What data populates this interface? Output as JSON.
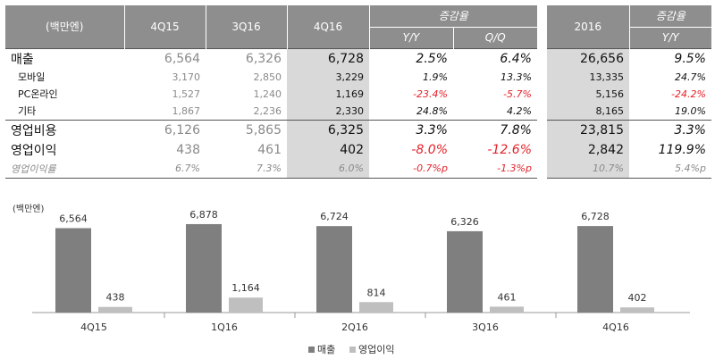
{
  "table": {
    "header_row_label": "(백만엔)",
    "columns": [
      "4Q15",
      "3Q16",
      "4Q16"
    ],
    "change_header": "증감율",
    "change_cols": [
      "Y/Y",
      "Q/Q"
    ],
    "rows": [
      {
        "label": "매출",
        "size": "big",
        "v": [
          "6,564",
          "6,326",
          "6,728"
        ],
        "yy": "2.5%",
        "qq": "6.4%",
        "yy_neg": false,
        "qq_neg": false
      },
      {
        "label": "모바일",
        "size": "sm",
        "v": [
          "3,170",
          "2,850",
          "3,229"
        ],
        "yy": "1.9%",
        "qq": "13.3%",
        "yy_neg": false,
        "qq_neg": false
      },
      {
        "label": "PC온라인",
        "size": "sm",
        "v": [
          "1,527",
          "1,240",
          "1,169"
        ],
        "yy": "-23.4%",
        "qq": "-5.7%",
        "yy_neg": true,
        "qq_neg": true
      },
      {
        "label": "기타",
        "size": "sm",
        "v": [
          "1,867",
          "2,236",
          "2,330"
        ],
        "yy": "24.8%",
        "qq": "4.2%",
        "yy_neg": false,
        "qq_neg": false
      },
      {
        "label": "영업비용",
        "size": "big",
        "v": [
          "6,126",
          "5,865",
          "6,325"
        ],
        "yy": "3.3%",
        "qq": "7.8%",
        "yy_neg": false,
        "qq_neg": false
      },
      {
        "label": "영업이익",
        "size": "big",
        "v": [
          "438",
          "461",
          "402"
        ],
        "yy": "-8.0%",
        "qq": "-12.6%",
        "yy_neg": true,
        "qq_neg": true
      },
      {
        "label": "영업이익률",
        "size": "pct",
        "v": [
          "6.7%",
          "7.3%",
          "6.0%"
        ],
        "yy": "-0.7%p",
        "qq": "-1.3%p",
        "yy_neg": true,
        "qq_neg": true
      }
    ]
  },
  "annual": {
    "year_label": "2016",
    "change_header": "증감율",
    "change_col": "Y/Y",
    "rows": [
      {
        "v": "26,656",
        "yy": "9.5%",
        "yy_neg": false
      },
      {
        "v": "13,335",
        "yy": "24.7%",
        "yy_neg": false
      },
      {
        "v": "5,156",
        "yy": "-24.2%",
        "yy_neg": true
      },
      {
        "v": "8,165",
        "yy": "19.0%",
        "yy_neg": false
      },
      {
        "v": "23,815",
        "yy": "3.3%",
        "yy_neg": false
      },
      {
        "v": "2,842",
        "yy": "119.9%",
        "yy_neg": false
      },
      {
        "v": "10.7%",
        "yy": "5.4%p",
        "yy_neg": false
      }
    ]
  },
  "chart_data": {
    "type": "bar",
    "unit_label": "(백만엔)",
    "categories": [
      "4Q15",
      "1Q16",
      "2Q16",
      "3Q16",
      "4Q16"
    ],
    "series": [
      {
        "name": "매출",
        "values": [
          6564,
          6878,
          6724,
          6326,
          6728
        ],
        "labels": [
          "6,564",
          "6,878",
          "6,724",
          "6,326",
          "6,728"
        ],
        "color": "#7f7f7f"
      },
      {
        "name": "영업이익",
        "values": [
          438,
          1164,
          814,
          461,
          402
        ],
        "labels": [
          "438",
          "1,164",
          "814",
          "461",
          "402"
        ],
        "color": "#bfbfbf"
      }
    ],
    "ylim": [
      0,
      7500
    ],
    "legend": "bottom-center"
  }
}
